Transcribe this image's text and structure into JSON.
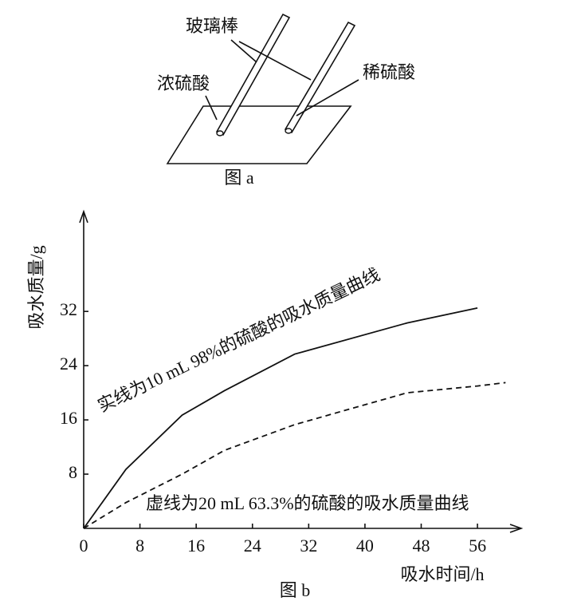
{
  "figure_a": {
    "rod_label": "玻璃棒",
    "left_label": "浓硫酸",
    "right_label": "稀硫酸",
    "caption": "图 a"
  },
  "chart_data": {
    "type": "line",
    "caption": "图 b",
    "y_label": "吸水质量/g",
    "x_label": "吸水时间/h",
    "x": [
      0,
      6,
      14,
      20,
      30,
      46,
      56,
      60
    ],
    "series": [
      {
        "name": "实线为10 mL 98%的硫酸的吸水质量曲线",
        "color": "#111111",
        "dashed": false,
        "values": [
          0,
          8.7,
          16.7,
          20.3,
          25.7,
          30.3,
          32.5,
          null
        ]
      },
      {
        "name": "虚线为20 mL 63.3%的硫酸的吸水质量曲线",
        "color": "#111111",
        "dashed": true,
        "values": [
          0,
          3.8,
          8,
          11.5,
          15.3,
          20,
          21,
          21.5
        ]
      }
    ],
    "xlim": [
      0,
      62
    ],
    "ylim": [
      0,
      46.5
    ],
    "xticks": [
      0,
      8,
      16,
      24,
      32,
      40,
      48,
      56
    ],
    "yticks": [
      8,
      16,
      24,
      32
    ]
  }
}
